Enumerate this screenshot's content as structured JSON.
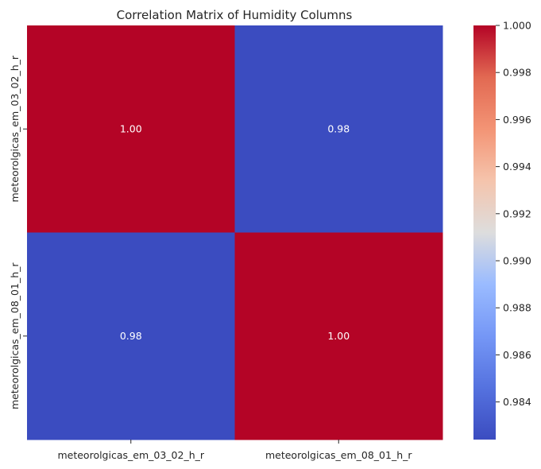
{
  "chart_data": {
    "type": "heatmap",
    "title": "Correlation Matrix of Humidity Columns",
    "x_categories": [
      "meteorolgicas_em_03_02_h_r",
      "meteorolgicas_em_08_01_h_r"
    ],
    "y_categories": [
      "meteorolgicas_em_03_02_h_r",
      "meteorolgicas_em_08_01_h_r"
    ],
    "values": [
      [
        1.0,
        0.9824
      ],
      [
        0.9824,
        1.0
      ]
    ],
    "cell_labels": [
      [
        "1.00",
        "0.98"
      ],
      [
        "0.98",
        "1.00"
      ]
    ],
    "colormap": "coolwarm",
    "colorbar": {
      "min": 0.9824,
      "max": 1.0,
      "ticks": [
        0.984,
        0.986,
        0.988,
        0.99,
        0.992,
        0.994,
        0.996,
        0.998,
        1.0
      ],
      "tick_labels": [
        "0.984",
        "0.986",
        "0.988",
        "0.990",
        "0.992",
        "0.994",
        "0.996",
        "0.998",
        "1.000"
      ]
    },
    "colors": {
      "low": "#3b4cc0",
      "mid": "#dddddd",
      "high": "#b40426"
    }
  }
}
